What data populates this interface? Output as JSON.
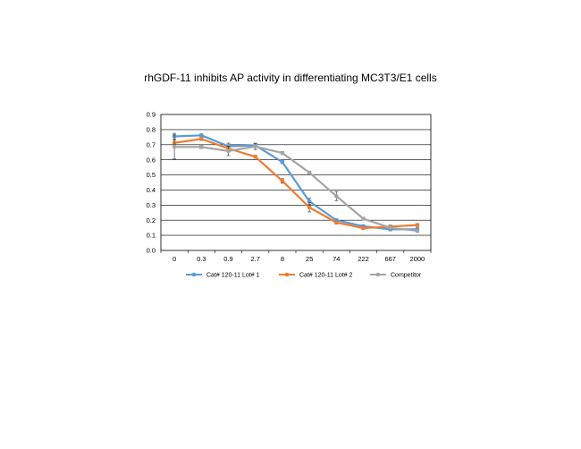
{
  "chart_data": {
    "type": "line",
    "title": "rhGDF-11 inhibits AP activity in differentiating MC3T3/E1 cells",
    "xlabel": "",
    "ylabel": "",
    "categories": [
      "0",
      "0.3",
      "0.9",
      "2.7",
      "8",
      "25",
      "74",
      "222",
      "667",
      "2000"
    ],
    "ylim": [
      0,
      0.9
    ],
    "yticks": [
      "0.0",
      "0.1",
      "0.2",
      "0.3",
      "0.4",
      "0.5",
      "0.6",
      "0.7",
      "0.8",
      "0.9"
    ],
    "grid": true,
    "legend_position": "bottom",
    "series": [
      {
        "name": "Cat# 120-11 Lot# 1",
        "color": "#5B9BD5",
        "values": [
          0.755,
          0.762,
          0.69,
          0.695,
          0.585,
          0.325,
          0.2,
          0.16,
          0.14,
          0.14
        ],
        "errors": [
          0.02,
          0.01,
          0.02,
          0.015,
          0.01,
          0.02,
          0.01,
          0.01,
          0.01,
          0.01
        ]
      },
      {
        "name": "Cat# 120-11 Lot# 2",
        "color": "#ED7D31",
        "values": [
          0.712,
          0.738,
          0.675,
          0.62,
          0.46,
          0.285,
          0.185,
          0.148,
          0.158,
          0.168
        ],
        "errors": [
          0.02,
          0.01,
          0.015,
          0.01,
          0.015,
          0.03,
          0.01,
          0.01,
          0.01,
          0.01
        ]
      },
      {
        "name": "Competitor",
        "color": "#A5A5A5",
        "values": [
          0.685,
          0.685,
          0.658,
          0.688,
          0.645,
          0.515,
          0.36,
          0.21,
          0.15,
          0.13
        ],
        "errors": [
          0.08,
          0.01,
          0.03,
          0.02,
          0.01,
          0.01,
          0.03,
          0.01,
          0.01,
          0.01
        ]
      }
    ]
  }
}
